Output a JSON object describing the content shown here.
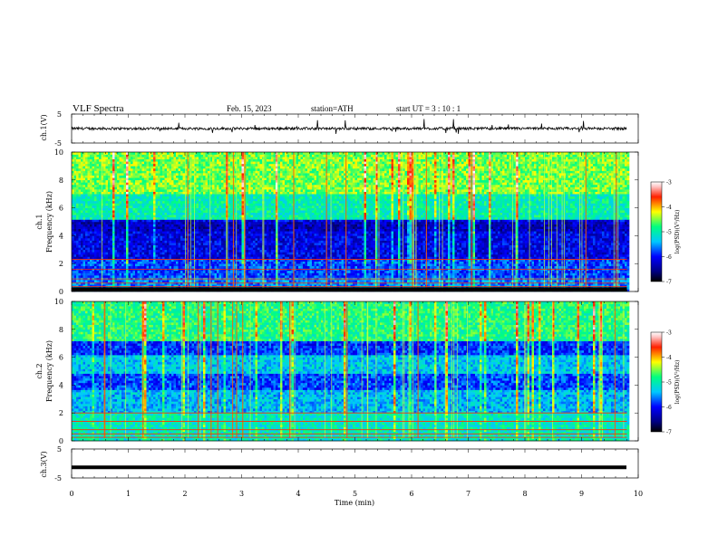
{
  "header": {
    "title": "VLF  Spectra",
    "date": "Feb. 15, 2023",
    "station": "station=ATH",
    "start": "start  UT  =   3  : 10 : 1"
  },
  "chart_data": [
    {
      "type": "line",
      "name": "ch1-waveform",
      "ylabel": "ch.1(V)",
      "ylim": [
        -5,
        5
      ],
      "yticks": [
        "5",
        "-5"
      ],
      "xlim": [
        0,
        10
      ],
      "x_end": 9.8,
      "level": 0.0,
      "color": "#000000"
    },
    {
      "type": "heatmap",
      "name": "ch1-spectrogram",
      "ylabel_top": "ch.1",
      "ylabel": "Frequency  (kHz)",
      "ylim": [
        0,
        10
      ],
      "yticks": [
        "0",
        "2",
        "4",
        "6",
        "8",
        "10"
      ],
      "xlim": [
        0,
        10
      ],
      "x_end": 9.8,
      "colorbar": {
        "label": "log(PSD)(V²/Hz)",
        "range": [
          -7,
          -3
        ],
        "ticks": [
          "-3",
          "-4",
          "-5",
          "-6",
          "-7"
        ]
      }
    },
    {
      "type": "heatmap",
      "name": "ch2-spectrogram",
      "ylabel_top": "ch.2",
      "ylabel": "Frequency  (kHz)",
      "ylim": [
        0,
        10
      ],
      "yticks": [
        "0",
        "2",
        "4",
        "6",
        "8",
        "10"
      ],
      "xlim": [
        0,
        10
      ],
      "x_end": 9.8,
      "colorbar": {
        "label": "log(PSD)(V²/Hz)",
        "range": [
          -7,
          -3
        ],
        "ticks": [
          "-3",
          "-4",
          "-5",
          "-6",
          "-7"
        ]
      }
    },
    {
      "type": "line",
      "name": "ch3-waveform",
      "ylabel": "ch.3(V)",
      "ylim": [
        -5,
        5
      ],
      "yticks": [
        "5",
        "-5"
      ],
      "xlim": [
        0,
        10
      ],
      "x_end": 9.8,
      "level": -1.3,
      "color": "#000000",
      "xlabel": "Time  (min)",
      "xticks": [
        "0",
        "1",
        "2",
        "3",
        "4",
        "5",
        "6",
        "7",
        "8",
        "9",
        "10"
      ]
    }
  ]
}
